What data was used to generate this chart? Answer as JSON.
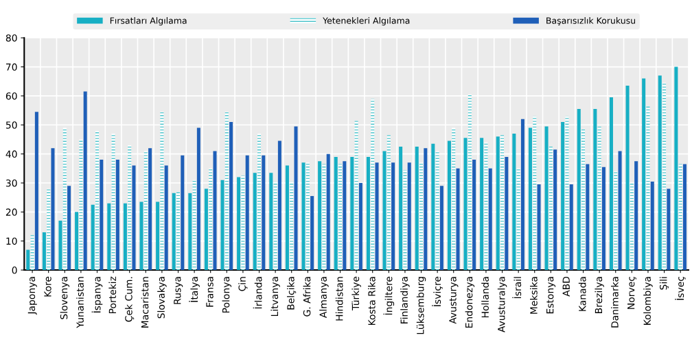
{
  "chart_data": {
    "type": "bar",
    "categories": [
      "Japonya",
      "Kore",
      "Slovenya",
      "Yunanistan",
      "İspanya",
      "Portekiz",
      "Çek Cum.",
      "Macaristan",
      "Slovakya",
      "Rusya",
      "İtalya",
      "Fransa",
      "Polonya",
      "Çin",
      "İrlanda",
      "Litvanya",
      "Belçika",
      "G. Afrika",
      "Almanya",
      "Hindistan",
      "Türkiye",
      "Kosta Rika",
      "İngiltere",
      "Finlandiya",
      "Lüksemburg",
      "İsviçre",
      "Avusturya",
      "Endonezya",
      "Hollanda",
      "Avusturalya",
      "İsrail",
      "Meksika",
      "Estonya",
      "ABD",
      "Kanada",
      "Brezilya",
      "Danimarka",
      "Norveç",
      "Kolombiya",
      "Şili",
      "İsveç"
    ],
    "series": [
      {
        "name": "Fırsatları Algılama",
        "color": "#17afc4",
        "values": [
          7,
          13,
          17,
          20,
          22.5,
          23,
          23,
          23.5,
          23.5,
          26.5,
          26.5,
          28,
          31,
          32,
          33.5,
          33.5,
          36,
          37,
          37.5,
          39,
          39,
          39,
          41,
          42.5,
          42.5,
          43.5,
          44.5,
          45.5,
          45.5,
          46,
          47,
          49,
          49.5,
          51,
          55.5,
          55.5,
          59.5,
          63.5,
          66,
          67,
          70
        ]
      },
      {
        "name": "Yetenekleri Algılama",
        "color": "#4cc4cc",
        "values": [
          12,
          28,
          49,
          45,
          48,
          47,
          43,
          41,
          54.5,
          27,
          31,
          35,
          54.5,
          32.5,
          47,
          30.5,
          30.5,
          37,
          36.5,
          36.5,
          51.5,
          59,
          46.5,
          34.5,
          37,
          41,
          49,
          60.5,
          44,
          46.5,
          35,
          53,
          42.5,
          53,
          48.5,
          49.5,
          34,
          30,
          56.5,
          64.5,
          36.5
        ]
      },
      {
        "name": "Başarısızlık Korukusu",
        "color": "#1f5fb8",
        "values": [
          54.5,
          42,
          29,
          61.5,
          38,
          38,
          36,
          42,
          36,
          39.5,
          49,
          41,
          51,
          39.5,
          39.5,
          44.5,
          49.5,
          25.5,
          40,
          37.5,
          30,
          37,
          37,
          37,
          42,
          29,
          35,
          38,
          35,
          39,
          52,
          29.5,
          41.5,
          29.5,
          36.5,
          35.5,
          41,
          37.5,
          30.5,
          28,
          36.5
        ]
      }
    ],
    "ylim": [
      0,
      80
    ],
    "yticks": [
      0,
      10,
      20,
      30,
      40,
      50,
      60,
      70,
      80
    ],
    "grid": true,
    "legend": "top"
  }
}
